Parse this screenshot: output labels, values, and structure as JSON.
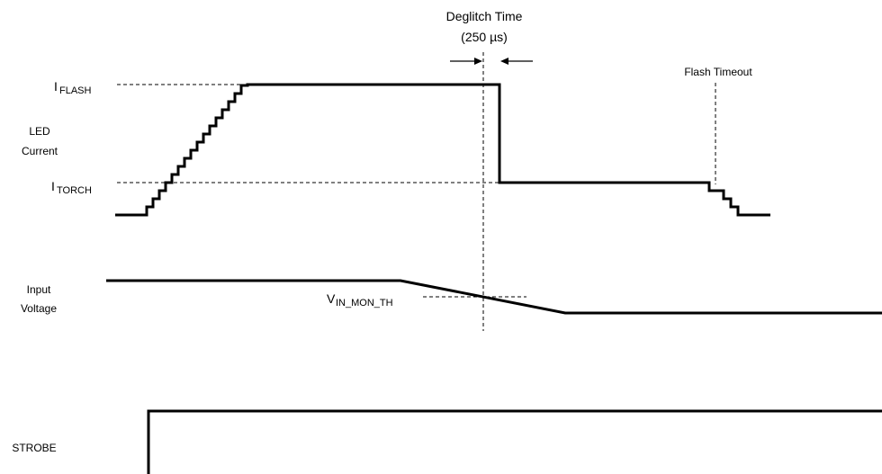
{
  "labels": {
    "deglitch_title": "Deglitch Time",
    "deglitch_value": "(250 µs)",
    "flash_timeout": "Flash Timeout",
    "iflash_main": "I",
    "iflash_sub": "FLASH",
    "itorch_main": "I",
    "itorch_sub": "TORCH",
    "led_current_line1": "LED",
    "led_current_line2": "Current",
    "input_voltage_line1": "Input",
    "input_voltage_line2": "Voltage",
    "vin_main": "V",
    "vin_sub": "IN_MON_TH",
    "strobe": "STROBE"
  }
}
